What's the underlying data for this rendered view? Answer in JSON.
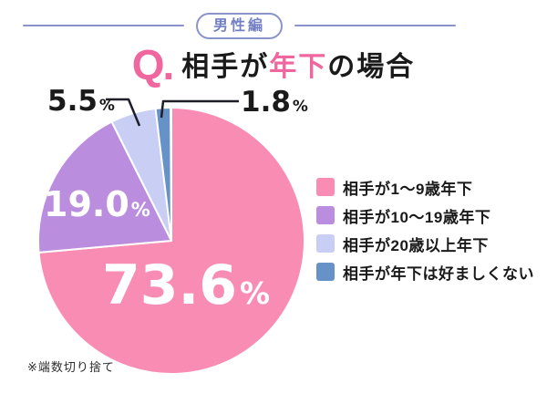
{
  "header": {
    "badge_label": "男性編"
  },
  "title": {
    "q_prefix": "Q.",
    "part1": "相手が",
    "highlight": "年下",
    "part2": "の場合"
  },
  "footnote": "※端数切り捨て",
  "colors": {
    "accent_pink": "#EF679E",
    "header_blue": "#8A94CB",
    "header_text": "#727FC3",
    "leader_line": "#1E1E28",
    "value_text_inside": "#FFFFFF",
    "value_text_outside": "#1A1A1A"
  },
  "chart_data": {
    "type": "pie",
    "title": "相手が年下の場合（男性編）",
    "direction": "clockwise",
    "start_angle_deg": 0,
    "legend_position": "right",
    "footnote": "※端数切り捨て",
    "slices": [
      {
        "label": "相手が1〜9歳年下",
        "value": 73.6,
        "display_value": "73.6",
        "unit": "%",
        "color": "#F98CB3",
        "label_color": "#FFFFFF",
        "label_placement": "inside"
      },
      {
        "label": "相手が10〜19歳年下",
        "value": 19.0,
        "display_value": "19.0",
        "unit": "%",
        "color": "#BB8DDE",
        "label_color": "#FFFFFF",
        "label_placement": "inside"
      },
      {
        "label": "相手が20歳以上年下",
        "value": 5.5,
        "display_value": "5.5",
        "unit": "%",
        "color": "#C8CEF4",
        "label_color": "#1A1A1A",
        "label_placement": "outside"
      },
      {
        "label": "相手が年下は好ましくない",
        "value": 1.8,
        "display_value": "1.8",
        "unit": "%",
        "color": "#6792C7",
        "label_color": "#1A1A1A",
        "label_placement": "outside"
      }
    ]
  }
}
